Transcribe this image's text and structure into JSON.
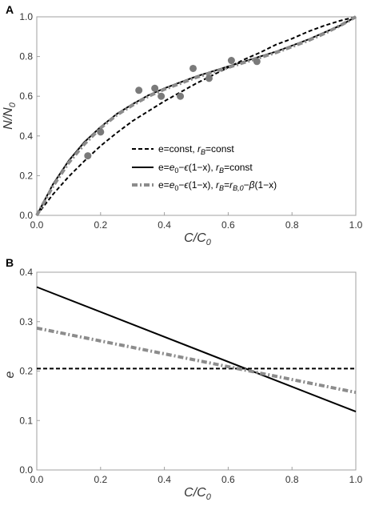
{
  "chart_data": [
    {
      "panel": "A",
      "type": "line",
      "xlabel": "C/C0",
      "ylabel": "N/N0",
      "xlim": [
        0,
        1
      ],
      "ylim": [
        0,
        1
      ],
      "xticks": [
        0.0,
        0.2,
        0.4,
        0.6,
        0.8,
        1.0
      ],
      "yticks": [
        0.0,
        0.2,
        0.4,
        0.6,
        0.8,
        1.0
      ],
      "tick_labels": [
        "0.0",
        "0.2",
        "0.4",
        "0.6",
        "0.8",
        "1.0"
      ],
      "grid": false,
      "legend_position": "bottom-right",
      "series": [
        {
          "name": "e=const, rB=const",
          "style": "dashed-black",
          "x": [
            0,
            0.05,
            0.1,
            0.15,
            0.2,
            0.25,
            0.3,
            0.35,
            0.4,
            0.45,
            0.5,
            0.55,
            0.6,
            0.65,
            0.7,
            0.75,
            0.8,
            0.85,
            0.9,
            0.95,
            1.0
          ],
          "y": [
            0.0,
            0.105,
            0.195,
            0.275,
            0.35,
            0.415,
            0.475,
            0.525,
            0.575,
            0.62,
            0.665,
            0.705,
            0.745,
            0.785,
            0.82,
            0.86,
            0.89,
            0.925,
            0.955,
            0.98,
            1.0
          ]
        },
        {
          "name": "e=e0-ε(1-x), rB=const",
          "style": "solid-black",
          "x": [
            0,
            0.05,
            0.1,
            0.15,
            0.2,
            0.25,
            0.3,
            0.35,
            0.4,
            0.45,
            0.5,
            0.55,
            0.6,
            0.65,
            0.7,
            0.75,
            0.8,
            0.85,
            0.9,
            0.95,
            1.0
          ],
          "y": [
            0.0,
            0.155,
            0.275,
            0.37,
            0.445,
            0.51,
            0.56,
            0.605,
            0.64,
            0.67,
            0.7,
            0.725,
            0.75,
            0.775,
            0.8,
            0.825,
            0.855,
            0.885,
            0.92,
            0.955,
            1.0
          ]
        },
        {
          "name": "e=e0-ε(1-x), rB=rB,0-β(1-x)",
          "style": "dashdot-gray",
          "x": [
            0,
            0.05,
            0.1,
            0.15,
            0.2,
            0.25,
            0.3,
            0.35,
            0.4,
            0.45,
            0.5,
            0.55,
            0.6,
            0.65,
            0.7,
            0.75,
            0.8,
            0.85,
            0.9,
            0.95,
            1.0
          ],
          "y": [
            0.0,
            0.145,
            0.265,
            0.36,
            0.44,
            0.505,
            0.555,
            0.6,
            0.635,
            0.665,
            0.695,
            0.72,
            0.745,
            0.77,
            0.795,
            0.82,
            0.85,
            0.88,
            0.915,
            0.955,
            1.0
          ]
        },
        {
          "name": "",
          "style": "scatter-gray",
          "x": [
            0.16,
            0.2,
            0.32,
            0.37,
            0.39,
            0.45,
            0.49,
            0.54,
            0.61,
            0.69
          ],
          "y": [
            0.3,
            0.42,
            0.63,
            0.64,
            0.6,
            0.6,
            0.74,
            0.69,
            0.78,
            0.775
          ]
        }
      ]
    },
    {
      "panel": "B",
      "type": "line",
      "xlabel": "C/C0",
      "ylabel": "e",
      "xlim": [
        0,
        1
      ],
      "ylim": [
        0,
        0.4
      ],
      "xticks": [
        0.0,
        0.2,
        0.4,
        0.6,
        0.8,
        1.0
      ],
      "yticks": [
        0.0,
        0.1,
        0.2,
        0.3,
        0.4
      ],
      "x_tick_labels": [
        "0.0",
        "0.2",
        "0.4",
        "0.6",
        "0.8",
        "1.0"
      ],
      "y_tick_labels": [
        "0.0",
        "0.1",
        "0.2",
        "0.3",
        "0.4"
      ],
      "grid": false,
      "series": [
        {
          "name": "e=const, rB=const",
          "style": "dashed-black",
          "x": [
            0,
            1
          ],
          "y": [
            0.205,
            0.205
          ]
        },
        {
          "name": "e=e0-ε(1-x), rB=const",
          "style": "solid-black",
          "x": [
            0,
            1
          ],
          "y": [
            0.37,
            0.118
          ]
        },
        {
          "name": "e=e0-ε(1-x), rB=rB,0-β(1-x)",
          "style": "dashdot-gray",
          "x": [
            0,
            1
          ],
          "y": [
            0.287,
            0.157
          ]
        }
      ]
    }
  ],
  "colors": {
    "black_line": "#000000",
    "gray_line": "#8c8c8c",
    "scatter": "#7a7a7a",
    "frame": "#a0a0a0",
    "text": "#333333"
  }
}
